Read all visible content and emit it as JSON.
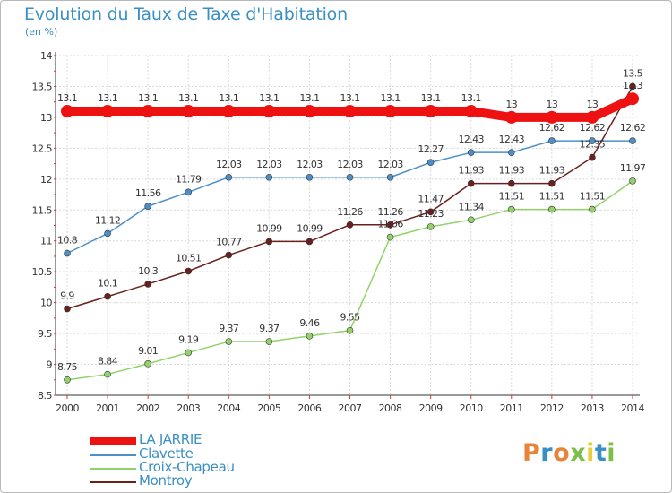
{
  "title": "Evolution du Taux de Taxe d'Habitation",
  "subtitle": "(en %)",
  "logo": {
    "text": "Proxiti",
    "colors": [
      "#e8843a",
      "#3a8fc4",
      "#e8843a",
      "#7dbf4a",
      "#e8d03a",
      "#3a8fc4",
      "#7dbf4a"
    ]
  },
  "chart_data": {
    "type": "line",
    "x": [
      "2000",
      "2001",
      "2002",
      "2003",
      "2004",
      "2005",
      "2006",
      "2007",
      "2008",
      "2009",
      "2010",
      "2011",
      "2012",
      "2013",
      "2014"
    ],
    "ylim": [
      8.5,
      14
    ],
    "yticks": [
      "8.5",
      "9",
      "9.5",
      "10",
      "10.5",
      "11",
      "11.5",
      "12",
      "12.5",
      "13",
      "13.5",
      "14"
    ],
    "grid": true,
    "legend_position": "bottom-left",
    "series": [
      {
        "name": "LA JARRIE",
        "color": "#ee1111",
        "values": [
          13.1,
          13.1,
          13.1,
          13.1,
          13.1,
          13.1,
          13.1,
          13.1,
          13.1,
          13.1,
          13.1,
          13,
          13,
          13,
          13.3
        ],
        "labels": [
          "13.1",
          "13.1",
          "13.1",
          "13.1",
          "13.1",
          "13.1",
          "13.1",
          "13.1",
          "13.1",
          "13.1",
          "13.1",
          "13",
          "13",
          "13",
          "13.3"
        ]
      },
      {
        "name": "Clavette",
        "color": "#4d8fc9",
        "values": [
          10.8,
          11.12,
          11.56,
          11.79,
          12.03,
          12.03,
          12.03,
          12.03,
          12.03,
          12.27,
          12.43,
          12.43,
          12.62,
          12.62,
          12.62
        ],
        "labels": [
          "10.8",
          "11.12",
          "11.56",
          "11.79",
          "12.03",
          "12.03",
          "12.03",
          "12.03",
          "12.03",
          "12.27",
          "12.43",
          "12.43",
          "12.62",
          "12.62",
          "12.62"
        ]
      },
      {
        "name": "Croix-Chapeau",
        "color": "#93d26a",
        "values": [
          8.75,
          8.84,
          9.01,
          9.19,
          9.37,
          9.37,
          9.46,
          9.55,
          11.06,
          11.23,
          11.34,
          11.51,
          11.51,
          11.51,
          11.97
        ],
        "labels": [
          "8.75",
          "8.84",
          "9.01",
          "9.19",
          "9.37",
          "9.37",
          "9.46",
          "9.55",
          "11.06",
          "11.23",
          "11.34",
          "11.51",
          "11.51",
          "11.51",
          "11.97"
        ]
      },
      {
        "name": "Montroy",
        "color": "#6b1f1f",
        "values": [
          9.9,
          10.1,
          10.3,
          10.51,
          10.77,
          10.99,
          10.99,
          11.26,
          11.26,
          11.47,
          11.93,
          11.93,
          11.93,
          12.35,
          13.5
        ],
        "labels": [
          "9.9",
          "10.1",
          "10.3",
          "10.51",
          "10.77",
          "10.99",
          "10.99",
          "11.26",
          "11.26",
          "11.47",
          "11.93",
          "11.93",
          "11.93",
          "12.35",
          "13.5"
        ]
      }
    ]
  }
}
